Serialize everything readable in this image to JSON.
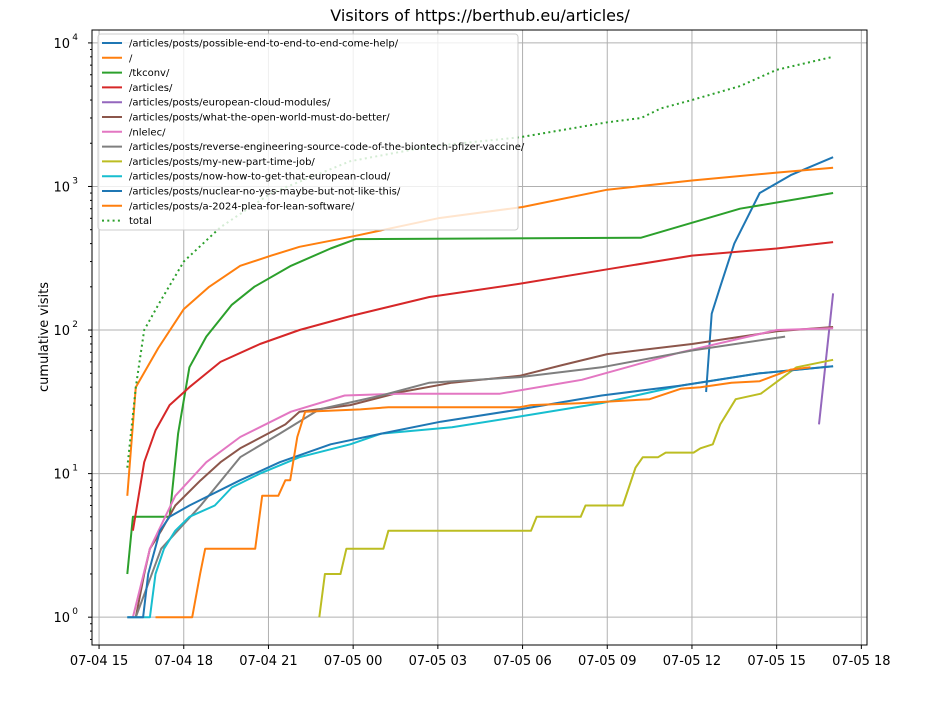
{
  "chart_data": {
    "type": "line",
    "title": "Visitors of https://berthub.eu/articles/",
    "xlabel": "",
    "ylabel": "cumulative visits",
    "x_unit": "hours since 07-04 15:00",
    "xlim": [
      -0.25,
      27.2
    ],
    "ylim": [
      0.64,
      12300
    ],
    "yscale": "log",
    "grid": true,
    "legend_position": "top-left",
    "x_ticks": [
      {
        "value": 0,
        "label": "07-04 15"
      },
      {
        "value": 3,
        "label": "07-04 18"
      },
      {
        "value": 6,
        "label": "07-04 21"
      },
      {
        "value": 9,
        "label": "07-05 00"
      },
      {
        "value": 12,
        "label": "07-05 03"
      },
      {
        "value": 15,
        "label": "07-05 06"
      },
      {
        "value": 18,
        "label": "07-05 09"
      },
      {
        "value": 21,
        "label": "07-05 12"
      },
      {
        "value": 24,
        "label": "07-05 15"
      },
      {
        "value": 27,
        "label": "07-05 18"
      }
    ],
    "y_ticks": [
      {
        "value": 1,
        "base": "10",
        "exp": "0"
      },
      {
        "value": 10,
        "base": "10",
        "exp": "1"
      },
      {
        "value": 100,
        "base": "10",
        "exp": "2"
      },
      {
        "value": 1000,
        "base": "10",
        "exp": "3"
      },
      {
        "value": 10000,
        "base": "10",
        "exp": "4"
      }
    ],
    "series": [
      {
        "name": "/articles/posts/possible-end-to-end-to-end-come-help/",
        "color": "#1f77b4",
        "dash": false,
        "points": [
          [
            21.5,
            37
          ],
          [
            21.7,
            130
          ],
          [
            22.0,
            200
          ],
          [
            22.5,
            400
          ],
          [
            23.4,
            900
          ],
          [
            24.5,
            1200
          ],
          [
            26.0,
            1600
          ]
        ]
      },
      {
        "name": "/",
        "color": "#ff7f0e",
        "dash": false,
        "points": [
          [
            1.0,
            7
          ],
          [
            1.3,
            40
          ],
          [
            2.1,
            75
          ],
          [
            3.0,
            140
          ],
          [
            3.9,
            200
          ],
          [
            5.0,
            280
          ],
          [
            6.1,
            330
          ],
          [
            7.1,
            380
          ],
          [
            9.0,
            450
          ],
          [
            12.0,
            600
          ],
          [
            15.0,
            720
          ],
          [
            18.0,
            950
          ],
          [
            21.0,
            1100
          ],
          [
            24.0,
            1250
          ],
          [
            26.0,
            1350
          ]
        ]
      },
      {
        "name": "/tkconv/",
        "color": "#2ca02c",
        "dash": false,
        "points": [
          [
            1.0,
            2
          ],
          [
            1.2,
            5
          ],
          [
            2.5,
            5
          ],
          [
            2.8,
            19
          ],
          [
            3.2,
            55
          ],
          [
            3.8,
            90
          ],
          [
            4.7,
            150
          ],
          [
            5.5,
            200
          ],
          [
            6.8,
            280
          ],
          [
            8.2,
            370
          ],
          [
            9.1,
            430
          ],
          [
            19.2,
            440
          ],
          [
            20.6,
            530
          ],
          [
            22.7,
            700
          ],
          [
            26.0,
            900
          ]
        ]
      },
      {
        "name": "/articles/",
        "color": "#d62728",
        "dash": false,
        "points": [
          [
            1.2,
            4
          ],
          [
            1.6,
            12
          ],
          [
            2.0,
            20
          ],
          [
            2.5,
            30
          ],
          [
            3.2,
            40
          ],
          [
            4.3,
            60
          ],
          [
            5.7,
            80
          ],
          [
            7.1,
            100
          ],
          [
            8.9,
            125
          ],
          [
            11.7,
            170
          ],
          [
            14.9,
            210
          ],
          [
            18.0,
            265
          ],
          [
            21.0,
            330
          ],
          [
            24.0,
            370
          ],
          [
            26.0,
            410
          ]
        ]
      },
      {
        "name": "/articles/posts/european-cloud-modules/",
        "color": "#9467bd",
        "dash": false,
        "points": [
          [
            25.5,
            22
          ],
          [
            26.0,
            180
          ]
        ]
      },
      {
        "name": "/articles/posts/what-the-open-world-must-do-better/",
        "color": "#8c564b",
        "dash": false,
        "points": [
          [
            1.3,
            1
          ],
          [
            1.6,
            2
          ],
          [
            1.8,
            3
          ],
          [
            2.2,
            4
          ],
          [
            2.7,
            6
          ],
          [
            3.6,
            9
          ],
          [
            4.3,
            12
          ],
          [
            5.0,
            15
          ],
          [
            6.6,
            22
          ],
          [
            7.1,
            27
          ],
          [
            8.9,
            30
          ],
          [
            10.7,
            37
          ],
          [
            12.5,
            43
          ],
          [
            14.9,
            48
          ],
          [
            16.4,
            57
          ],
          [
            18.0,
            68
          ],
          [
            21.0,
            80
          ],
          [
            24.0,
            98
          ],
          [
            26.0,
            105
          ]
        ]
      },
      {
        "name": "/nlelec/",
        "color": "#e377c2",
        "dash": false,
        "points": [
          [
            1.2,
            1
          ],
          [
            1.8,
            3
          ],
          [
            2.7,
            7
          ],
          [
            3.8,
            12
          ],
          [
            5.0,
            18
          ],
          [
            6.8,
            27
          ],
          [
            8.7,
            35
          ],
          [
            10.7,
            36
          ],
          [
            14.2,
            36
          ],
          [
            17.1,
            45
          ],
          [
            20.6,
            70
          ],
          [
            24.0,
            100
          ],
          [
            26.0,
            103
          ]
        ]
      },
      {
        "name": "/articles/posts/reverse-engineering-source-code-of-the-biontech-pfizer-vaccine/",
        "color": "#7f7f7f",
        "dash": false,
        "points": [
          [
            1.3,
            1
          ],
          [
            2.2,
            3
          ],
          [
            3.6,
            6
          ],
          [
            5.0,
            13
          ],
          [
            6.4,
            19
          ],
          [
            7.8,
            28
          ],
          [
            10.0,
            35
          ],
          [
            11.7,
            43
          ],
          [
            14.9,
            47
          ],
          [
            17.8,
            55
          ],
          [
            21.0,
            72
          ],
          [
            24.3,
            90
          ]
        ]
      },
      {
        "name": "/articles/posts/my-new-part-time-job/",
        "color": "#bcbd22",
        "dash": false,
        "points": [
          [
            7.8,
            1
          ],
          [
            8.0,
            2
          ],
          [
            8.55,
            2
          ],
          [
            8.76,
            3
          ],
          [
            10.07,
            3
          ],
          [
            10.25,
            4
          ],
          [
            15.3,
            4
          ],
          [
            15.5,
            5
          ],
          [
            17.06,
            5
          ],
          [
            17.23,
            6
          ],
          [
            18.55,
            6
          ],
          [
            19.0,
            11
          ],
          [
            19.26,
            13
          ],
          [
            19.8,
            13
          ],
          [
            20.07,
            14
          ],
          [
            21.06,
            14
          ],
          [
            21.3,
            15
          ],
          [
            21.74,
            16
          ],
          [
            22.0,
            22
          ],
          [
            22.55,
            33
          ],
          [
            23.44,
            36
          ],
          [
            24.7,
            55
          ],
          [
            26.0,
            62
          ]
        ]
      },
      {
        "name": "/articles/posts/now-how-to-get-that-european-cloud/",
        "color": "#17becf",
        "dash": false,
        "points": [
          [
            1.0,
            1
          ],
          [
            1.8,
            1
          ],
          [
            2.0,
            2
          ],
          [
            2.3,
            3
          ],
          [
            2.7,
            4
          ],
          [
            3.2,
            5
          ],
          [
            4.1,
            6
          ],
          [
            4.7,
            8
          ],
          [
            5.7,
            10
          ],
          [
            7.1,
            13
          ],
          [
            8.9,
            16
          ],
          [
            10.0,
            19
          ],
          [
            12.5,
            21
          ],
          [
            14.9,
            25
          ],
          [
            17.8,
            31
          ],
          [
            20.6,
            41
          ],
          [
            23.4,
            50
          ],
          [
            26.0,
            56
          ]
        ]
      },
      {
        "name": "/articles/posts/nuclear-no-yes-maybe-but-not-like-this/",
        "color": "#1f77b4",
        "dash": false,
        "points": [
          [
            1.0,
            1
          ],
          [
            1.56,
            1
          ],
          [
            1.74,
            2
          ],
          [
            2.16,
            4
          ],
          [
            2.5,
            5
          ],
          [
            3.2,
            6
          ],
          [
            5.0,
            9
          ],
          [
            6.4,
            12
          ],
          [
            8.2,
            16
          ],
          [
            10.0,
            19
          ],
          [
            12.1,
            23
          ],
          [
            14.9,
            28
          ],
          [
            17.8,
            35
          ],
          [
            20.6,
            41
          ],
          [
            23.4,
            50
          ],
          [
            26.0,
            56
          ]
        ]
      },
      {
        "name": "/articles/posts/a-2024-plea-for-lean-software/",
        "color": "#ff7f0e",
        "dash": false,
        "points": [
          [
            2.0,
            1
          ],
          [
            3.3,
            1
          ],
          [
            3.58,
            2
          ],
          [
            3.76,
            3
          ],
          [
            5.53,
            3
          ],
          [
            5.78,
            7
          ],
          [
            6.35,
            7
          ],
          [
            6.6,
            9
          ],
          [
            6.77,
            9
          ],
          [
            7.02,
            18
          ],
          [
            7.3,
            27
          ],
          [
            9.26,
            28
          ],
          [
            10.25,
            29
          ],
          [
            14.9,
            29
          ],
          [
            15.3,
            30
          ],
          [
            17.1,
            31
          ],
          [
            19.5,
            33
          ],
          [
            20.6,
            39
          ],
          [
            21.3,
            40
          ],
          [
            22.4,
            43
          ],
          [
            23.4,
            44
          ],
          [
            24.5,
            53
          ],
          [
            25.2,
            55
          ]
        ]
      },
      {
        "name": "total",
        "color": "#2ca02c",
        "dash": true,
        "points": [
          [
            1.0,
            11
          ],
          [
            1.3,
            40
          ],
          [
            1.6,
            100
          ],
          [
            2.1,
            150
          ],
          [
            3.0,
            300
          ],
          [
            4.3,
            520
          ],
          [
            6.1,
            900
          ],
          [
            8.9,
            1500
          ],
          [
            11.7,
            1900
          ],
          [
            14.9,
            2200
          ],
          [
            18.0,
            2800
          ],
          [
            19.2,
            3000
          ],
          [
            19.9,
            3500
          ],
          [
            21.0,
            4000
          ],
          [
            22.7,
            5000
          ],
          [
            24.0,
            6500
          ],
          [
            26.0,
            8000
          ]
        ]
      }
    ]
  }
}
